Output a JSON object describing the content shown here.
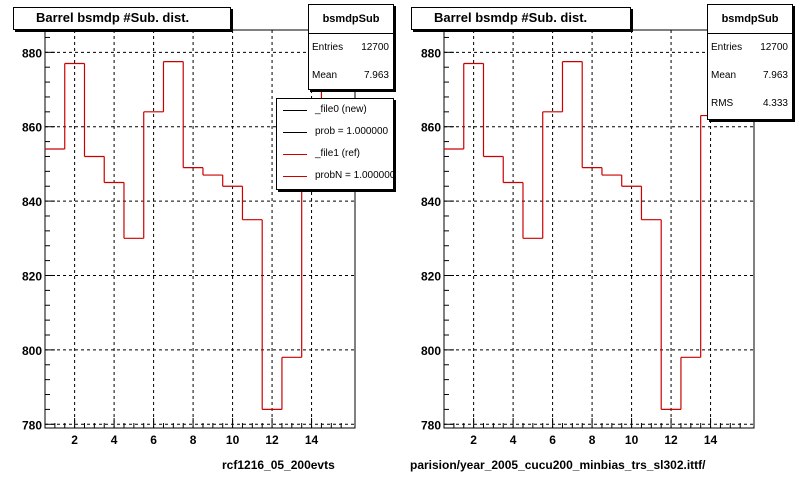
{
  "colors": {
    "histogram": "#cc0000",
    "legend_new": "#000000",
    "legend_ref": "#cc0000"
  },
  "chart_data": [
    {
      "type": "bar",
      "title": "Barrel bsmdp #Sub. dist.",
      "bin_edges": [
        0.5,
        1.5,
        2.5,
        3.5,
        4.5,
        5.5,
        6.5,
        7.5,
        8.5,
        9.5,
        10.5,
        11.5,
        12.5,
        13.5,
        14.5,
        15.5
      ],
      "values": [
        854,
        877,
        852,
        845,
        830,
        864,
        877.5,
        849,
        847,
        844,
        835,
        784,
        798,
        863,
        880
      ],
      "xlim": [
        0.5,
        16.2
      ],
      "ylim": [
        779,
        886
      ],
      "xticks": [
        "2",
        "4",
        "6",
        "8",
        "10",
        "12",
        "14"
      ],
      "yticks": [
        "780",
        "800",
        "820",
        "840",
        "860",
        "880"
      ],
      "grid": true,
      "stats": {
        "title": "bsmdpSub",
        "rows": [
          {
            "k": "Entries",
            "v": "12700"
          },
          {
            "k": "Mean",
            "v": "7.963"
          }
        ]
      },
      "legend": {
        "placement": "right",
        "entries": [
          "_file0 (new)",
          "prob = 1.000000",
          "_file1 (ref)",
          "probN = 1.000000"
        ]
      },
      "footer": "rcf1216_05_200evts"
    },
    {
      "type": "bar",
      "title": "Barrel bsmdp #Sub. dist.",
      "bin_edges": [
        0.5,
        1.5,
        2.5,
        3.5,
        4.5,
        5.5,
        6.5,
        7.5,
        8.5,
        9.5,
        10.5,
        11.5,
        12.5,
        13.5,
        14.5,
        15.5
      ],
      "values": [
        854,
        877,
        852,
        845,
        830,
        864,
        877.5,
        849,
        847,
        844,
        835,
        784,
        798,
        863,
        880
      ],
      "xlim": [
        0.5,
        16.2
      ],
      "ylim": [
        779,
        886
      ],
      "xticks": [
        "2",
        "4",
        "6",
        "8",
        "10",
        "12",
        "14"
      ],
      "yticks": [
        "780",
        "800",
        "820",
        "840",
        "860",
        "880"
      ],
      "grid": true,
      "stats": {
        "title": "bsmdpSub",
        "rows": [
          {
            "k": "Entries",
            "v": "12700"
          },
          {
            "k": "Mean",
            "v": "7.963"
          },
          {
            "k": "RMS",
            "v": "4.333"
          }
        ]
      },
      "footer": "parision/year_2005_cucu200_minbias_trs_sl302.ittf/"
    }
  ]
}
